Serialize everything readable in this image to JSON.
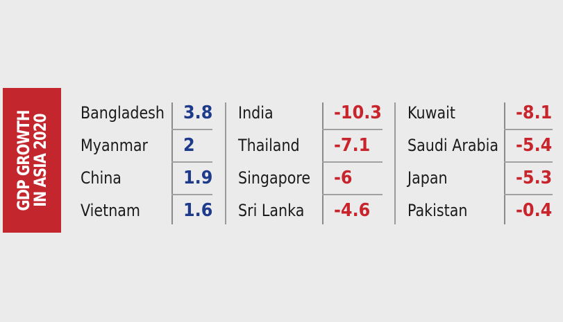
{
  "chart_data": {
    "type": "table",
    "title_lines": [
      "GDP GROWTH",
      "IN ASIA 2020"
    ],
    "colors": {
      "positive": "#1e3a8a",
      "negative": "#c8242c",
      "title_bg": "#c4262e"
    },
    "columns": [
      {
        "rows": [
          {
            "country": "Bangladesh",
            "value": "3.8"
          },
          {
            "country": "Myanmar",
            "value": "2"
          },
          {
            "country": "China",
            "value": "1.9"
          },
          {
            "country": "Vietnam",
            "value": "1.6"
          }
        ]
      },
      {
        "rows": [
          {
            "country": "India",
            "value": "-10.3"
          },
          {
            "country": "Thailand",
            "value": "-7.1"
          },
          {
            "country": "Singapore",
            "value": "-6"
          },
          {
            "country": "Sri Lanka",
            "value": "-4.6"
          }
        ]
      },
      {
        "rows": [
          {
            "country": "Kuwait",
            "value": "-8.1"
          },
          {
            "country": "Saudi Arabia",
            "value": "-5.4"
          },
          {
            "country": "Japan",
            "value": "-5.3"
          },
          {
            "country": "Pakistan",
            "value": "-0.4"
          }
        ]
      }
    ]
  }
}
